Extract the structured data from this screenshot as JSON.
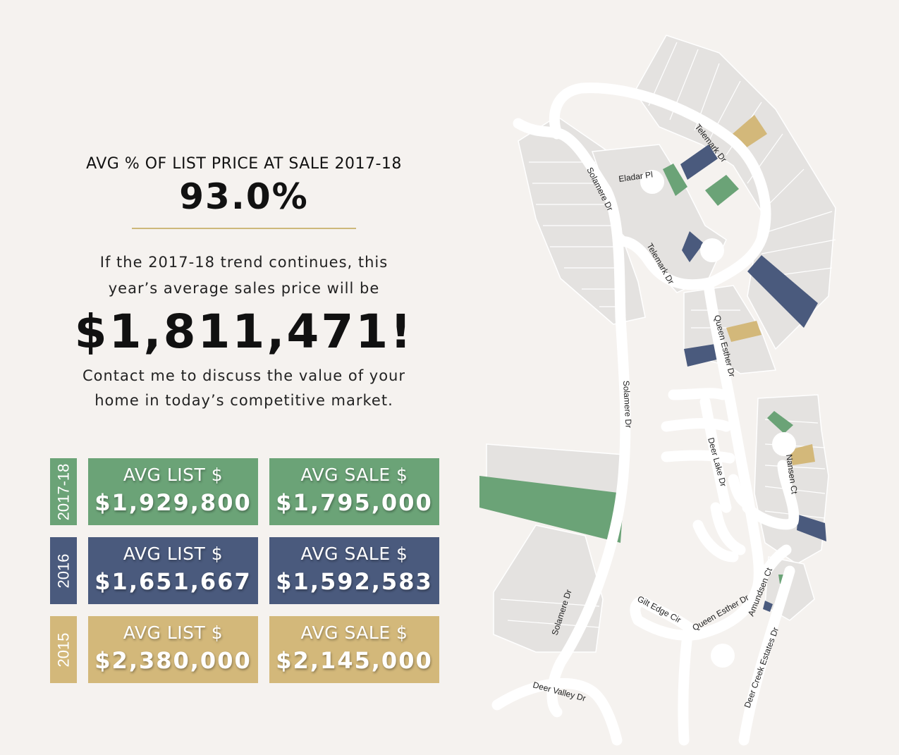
{
  "kpi": {
    "label": "AVG % OF LIST PRICE AT SALE 2017-18",
    "value": "93.0%"
  },
  "trend": {
    "line1": "If the 2017-18 trend continues, this",
    "line2": "year’s average sales price will be",
    "projected_price": "$1,811,471!"
  },
  "contact": {
    "line1": "Contact me to discuss the value of your",
    "line2": "home in today’s competitive market."
  },
  "rows": [
    {
      "year": "2017-18",
      "color": "#6ba377",
      "list_label": "AVG LIST $",
      "list_value": "$1,929,800",
      "sale_label": "AVG SALE $",
      "sale_value": "$1,795,000"
    },
    {
      "year": "2016",
      "color": "#4a5a7d",
      "list_label": "AVG LIST $",
      "list_value": "$1,651,667",
      "sale_label": "AVG SALE $",
      "sale_value": "$1,592,583"
    },
    {
      "year": "2015",
      "color": "#d3b87a",
      "list_label": "AVG LIST $",
      "list_value": "$2,380,000",
      "sale_label": "AVG SALE $",
      "sale_value": "$2,145,000"
    }
  ],
  "map": {
    "streets": {
      "telemark_dr_north": "Telemark Dr",
      "eladar_pl": "Eladar Pl",
      "solamere_dr_north": "Solamere Dr",
      "telemark_dr_south": "Telemark Dr",
      "queen_esther_dr_north": "Queen Esther Dr",
      "solamere_dr_mid": "Solamere Dr",
      "deer_lake_dr": "Deer Lake Dr",
      "nansen_ct": "Nansen Ct",
      "amundsen_ct": "Amundsen Ct",
      "queen_esther_dr_south": "Queen Esther Dr",
      "gilt_edge_cir": "Gilt Edge Cir",
      "solamere_dr_south": "Solamere Dr",
      "deer_creek_estates_dr": "Deer Creek Estates Dr",
      "deer_valley_dr": "Deer Valley Dr"
    }
  }
}
